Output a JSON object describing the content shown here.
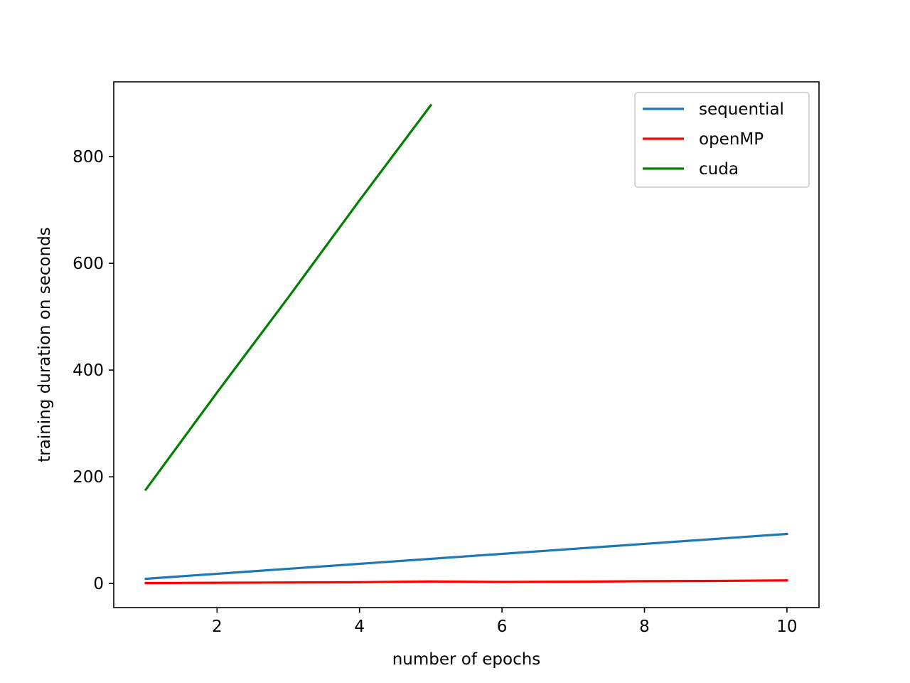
{
  "chart_data": {
    "type": "line",
    "title": "",
    "xlabel": "number of epochs",
    "ylabel": "training duration on seconds",
    "xlim": [
      0.55,
      10.45
    ],
    "ylim": [
      -45,
      940
    ],
    "xticks": [
      2,
      4,
      6,
      8,
      10
    ],
    "yticks": [
      0,
      200,
      400,
      600,
      800
    ],
    "grid": false,
    "legend_position": "top-right",
    "series": [
      {
        "name": "sequential",
        "color": "#1f77b4",
        "x": [
          1,
          10
        ],
        "y": [
          9,
          93
        ]
      },
      {
        "name": "openMP",
        "color": "#ff0000",
        "x": [
          1,
          2,
          3,
          4,
          5,
          6,
          7,
          8,
          9,
          10
        ],
        "y": [
          1,
          1.5,
          2,
          2.5,
          4,
          3,
          3.5,
          4.5,
          5,
          6
        ]
      },
      {
        "name": "cuda",
        "color": "#008000",
        "x": [
          1,
          2,
          3,
          4,
          5
        ],
        "y": [
          176,
          358,
          536,
          718,
          896
        ]
      }
    ]
  }
}
